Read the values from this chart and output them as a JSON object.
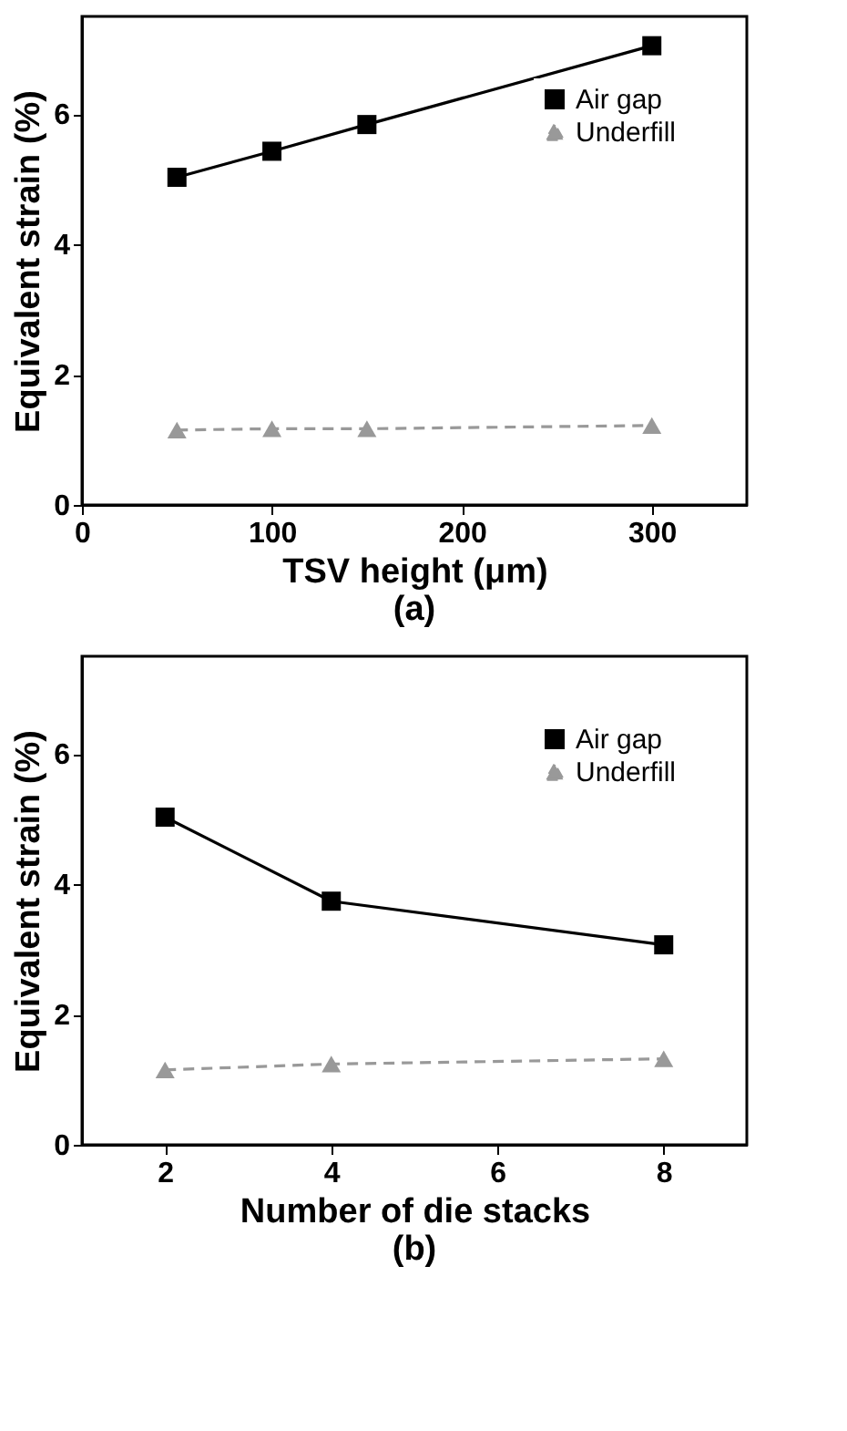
{
  "chart_data": [
    {
      "type": "line",
      "xlabel": "TSV height (μm)",
      "ylabel": "Equivalent strain (%)",
      "annotations": [
        "(a)"
      ],
      "x": [
        50,
        100,
        150,
        300
      ],
      "xlim": [
        0,
        350
      ],
      "xticks": [
        0,
        100,
        200,
        300
      ],
      "ylim": [
        0,
        7.5
      ],
      "yticks": [
        0,
        2,
        4,
        6
      ],
      "grid": false,
      "legend": "top right",
      "series": [
        {
          "name": "Air gap",
          "color": "#000000",
          "marker": "square",
          "line_style": "solid",
          "values": [
            5.03,
            5.43,
            5.84,
            7.05
          ]
        },
        {
          "name": "Underfill",
          "color": "#999999",
          "marker": "triangle",
          "line_style": "dashed",
          "values": [
            1.15,
            1.17,
            1.17,
            1.22
          ]
        }
      ]
    },
    {
      "type": "line",
      "xlabel": "Number of die stacks",
      "ylabel": "Equivalent strain (%)",
      "annotations": [
        "(b)"
      ],
      "x": [
        2,
        4,
        8
      ],
      "xlim": [
        1,
        9
      ],
      "xticks": [
        2,
        4,
        6,
        8
      ],
      "ylim": [
        0,
        7.5
      ],
      "yticks": [
        0,
        2,
        4,
        6
      ],
      "grid": false,
      "legend": "top right",
      "series": [
        {
          "name": "Air gap",
          "color": "#000000",
          "marker": "square",
          "line_style": "solid",
          "values": [
            5.03,
            3.74,
            3.07
          ]
        },
        {
          "name": "Underfill",
          "color": "#999999",
          "marker": "triangle",
          "line_style": "dashed",
          "values": [
            1.15,
            1.24,
            1.32
          ]
        }
      ]
    }
  ]
}
